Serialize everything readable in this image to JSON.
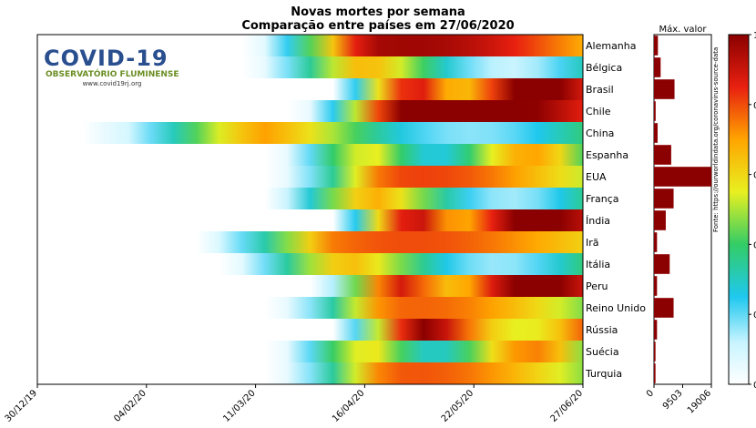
{
  "title_line1": "Novas mortes por semana",
  "title_line2": "Comparação entre países em 27/06/2020",
  "logo": {
    "word": "COVID-19",
    "subtitle": "OBSERVATÓRIO FLUMINENSE",
    "url": "www.covid19rj.org"
  },
  "source": "Fonte: https://ourworldindata.org/coronavirus-source-data",
  "chart_data": [
    {
      "type": "heatmap",
      "title": "Novas mortes por semana",
      "subtitle": "Comparação entre países em 27/06/2020",
      "x_tick_labels": [
        "30/12/19",
        "04/02/20",
        "11/03/20",
        "16/04/20",
        "22/05/20",
        "27/06/20"
      ],
      "x_range": [
        "2019-12-30",
        "2020-06-27"
      ],
      "countries": [
        "Alemanha",
        "Bélgica",
        "Brasil",
        "Chile",
        "China",
        "Espanha",
        "EUA",
        "França",
        "Índia",
        "Irã",
        "Itália",
        "Peru",
        "Reino Unido",
        "Rússia",
        "Suécia",
        "Turquia"
      ],
      "rows": [
        {
          "start": 0.4,
          "peak": 0.75,
          "end": 0.62
        },
        {
          "start": 0.4,
          "peak": 0.56,
          "end": 0.05
        },
        {
          "start": 0.55,
          "peak": 0.92,
          "end": 0.85
        },
        {
          "start": 0.5,
          "peak": 0.92,
          "end": 0.8
        },
        {
          "start": 0.12,
          "peak": 0.55,
          "end": 0.2
        },
        {
          "start": 0.45,
          "peak": 0.6,
          "end": 0.25
        },
        {
          "start": 0.45,
          "peak": 0.6,
          "end": 0.45
        },
        {
          "start": 0.42,
          "peak": 0.55,
          "end": 0.15
        },
        {
          "start": 0.55,
          "peak": 0.95,
          "end": 0.9
        },
        {
          "start": 0.3,
          "peak": 0.48,
          "end": 0.75
        },
        {
          "start": 0.35,
          "peak": 0.5,
          "end": 0.25
        },
        {
          "start": 0.52,
          "peak": 0.9,
          "end": 0.9
        },
        {
          "start": 0.45,
          "peak": 0.58,
          "end": 0.35
        },
        {
          "start": 0.55,
          "peak": 0.85,
          "end": 0.7
        },
        {
          "start": 0.45,
          "peak": 0.6,
          "end": 0.35
        },
        {
          "start": 0.45,
          "peak": 0.6,
          "end": 0.35
        }
      ],
      "colorbar": {
        "min": 0,
        "max": 1,
        "tick_labels": [
          "0",
          "0.",
          "0.",
          "0.",
          "0.",
          "1"
        ]
      }
    },
    {
      "type": "bar",
      "title": "Máx. valor",
      "orientation": "horizontal",
      "categories": [
        "Alemanha",
        "Bélgica",
        "Brasil",
        "Chile",
        "China",
        "Espanha",
        "EUA",
        "França",
        "Índia",
        "Irã",
        "Itália",
        "Peru",
        "Reino Unido",
        "Rússia",
        "Suécia",
        "Turquia"
      ],
      "values": [
        1300,
        2200,
        6800,
        550,
        1200,
        5700,
        19006,
        6500,
        3900,
        1000,
        5200,
        1000,
        6500,
        1000,
        500,
        500
      ],
      "xlim": [
        0,
        19006
      ],
      "x_tick_labels": [
        "0",
        "9503",
        "19006"
      ]
    }
  ]
}
